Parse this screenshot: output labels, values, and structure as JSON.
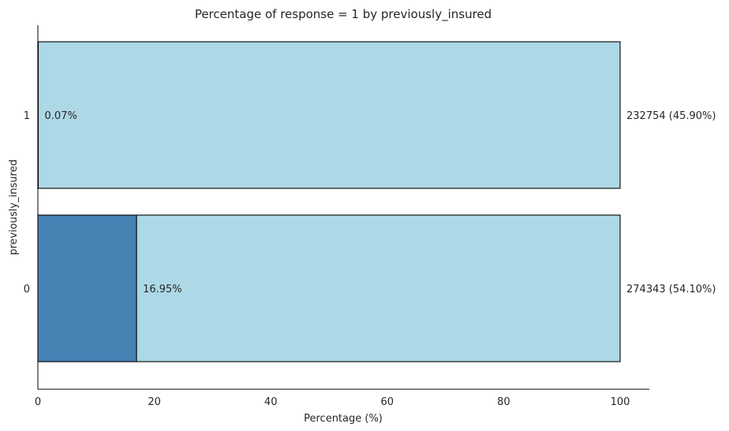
{
  "chart_data": {
    "type": "bar",
    "orientation": "horizontal",
    "stacked": true,
    "title": "Percentage of response = 1 by previously_insured",
    "xlabel": "Percentage (%)",
    "ylabel": "previously_insured",
    "xlim": [
      0,
      105
    ],
    "xticks": [
      "0",
      "20",
      "40",
      "60",
      "80",
      "100"
    ],
    "categories": [
      "0",
      "1"
    ],
    "series": [
      {
        "values": [
          16.95,
          0.07
        ],
        "color": "#4682b4"
      },
      {
        "values": [
          83.05,
          99.93
        ],
        "color": "#add8e6"
      }
    ],
    "inside_labels": [
      "16.95%",
      "0.07%"
    ],
    "outside_labels": [
      "274343 (54.10%)",
      "232754 (45.90%)"
    ],
    "grid": false,
    "legend": "none"
  }
}
